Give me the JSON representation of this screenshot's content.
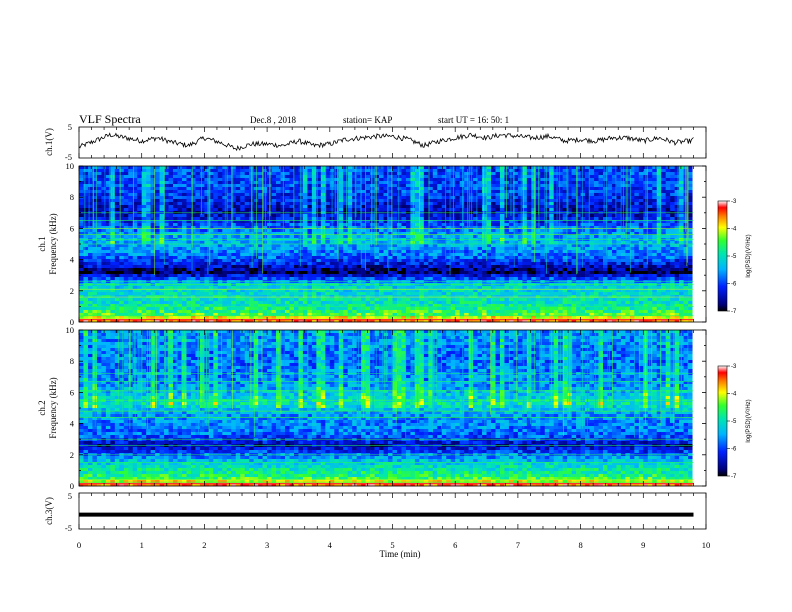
{
  "header": {
    "title": "VLF Spectra",
    "date": "Dec.8 , 2018",
    "station": "station= KAP",
    "start": "start UT = 16: 50: 1"
  },
  "panels": {
    "ch1_voltage": {
      "label": "ch.1(V)",
      "ticks": [
        "5",
        "-5"
      ]
    },
    "ch1_spectrogram": {
      "label_line1": "ch.1",
      "label_line2": "Frequency (kHz)",
      "ticks": [
        "0",
        "2",
        "4",
        "6",
        "8",
        "10"
      ]
    },
    "ch2_spectrogram": {
      "label_line1": "ch.2",
      "label_line2": "Frequency (kHz)",
      "ticks": [
        "0",
        "2",
        "4",
        "6",
        "8",
        "10"
      ]
    },
    "ch3_voltage": {
      "label": "ch.3(V)",
      "ticks": [
        "5",
        "-5"
      ]
    }
  },
  "colorbar": {
    "label": "log(PSD)(V²/Hz)",
    "ticks": [
      "-3",
      "-4",
      "-5",
      "-6",
      "-7"
    ]
  },
  "chart_data": [
    {
      "type": "line",
      "panel": "ch.1(V)",
      "xlabel": "Time (min)",
      "ylabel": "ch.1(V)",
      "xlim": [
        0,
        10
      ],
      "ylim": [
        -5,
        5
      ],
      "x": [
        0,
        0.25,
        0.5,
        0.75,
        1,
        1.25,
        1.5,
        1.75,
        2,
        2.25,
        2.5,
        2.75,
        3,
        3.25,
        3.5,
        3.75,
        4,
        4.25,
        4.5,
        4.75,
        5,
        5.25,
        5.5,
        5.75,
        6,
        6.25,
        6.5,
        6.75,
        7,
        7.25,
        7.5,
        7.75,
        8,
        8.25,
        8.5,
        8.75,
        9,
        9.25,
        9.5,
        9.75,
        9.8
      ],
      "y": [
        -1.5,
        0.5,
        2.5,
        1.5,
        0.5,
        1.5,
        0,
        -1,
        1.5,
        0,
        -2,
        -0.5,
        -0.5,
        -1,
        0.5,
        -1,
        -0.5,
        1,
        1.5,
        2,
        2,
        1,
        -1,
        0.5,
        1.5,
        2.5,
        1.5,
        2.5,
        2,
        1.5,
        2,
        0.5,
        1,
        0.5,
        1.5,
        1.5,
        0.5,
        1.5,
        0,
        0.5,
        1
      ],
      "grid": false
    },
    {
      "type": "heatmap",
      "panel": "ch.1",
      "xlabel": "Time (min)",
      "ylabel": "Frequency (kHz)",
      "xlim": [
        0,
        10
      ],
      "ylim": [
        0,
        10
      ],
      "zlabel": "log(PSD)(V²/Hz)",
      "zlim": [
        -7,
        -3
      ],
      "freq_bands_khz": [
        0.1,
        0.5,
        1.2,
        2.4,
        3.2,
        4.2,
        5.2,
        6.0,
        7.0,
        8.5
      ],
      "band_log_psd": [
        -3.5,
        -4.5,
        -5.0,
        -5.2,
        -6.8,
        -5.8,
        -5.4,
        -5.8,
        -6.5,
        -6.0
      ],
      "grid": false
    },
    {
      "type": "heatmap",
      "panel": "ch.2",
      "xlabel": "Time (min)",
      "ylabel": "Frequency (kHz)",
      "xlim": [
        0,
        10
      ],
      "ylim": [
        0,
        10
      ],
      "zlabel": "log(PSD)(V²/Hz)",
      "zlim": [
        -7,
        -3
      ],
      "freq_bands_khz": [
        0.1,
        0.5,
        1.5,
        2.6,
        3.3,
        4.5,
        5.3,
        6.5,
        8.0,
        9.5
      ],
      "band_log_psd": [
        -3.5,
        -4.6,
        -5.2,
        -6.5,
        -5.8,
        -5.6,
        -5.0,
        -5.6,
        -5.8,
        -5.6
      ],
      "grid": false
    },
    {
      "type": "line",
      "panel": "ch.3(V)",
      "xlabel": "Time (min)",
      "ylabel": "ch.3(V)",
      "xlim": [
        0,
        10
      ],
      "ylim": [
        -5,
        5
      ],
      "x": [
        0,
        9.8
      ],
      "y": [
        -1,
        -1
      ],
      "grid": false
    }
  ],
  "xaxis": {
    "label": "Time (min)",
    "ticks": [
      "0",
      "1",
      "2",
      "3",
      "4",
      "5",
      "6",
      "7",
      "8",
      "9",
      "10"
    ]
  }
}
